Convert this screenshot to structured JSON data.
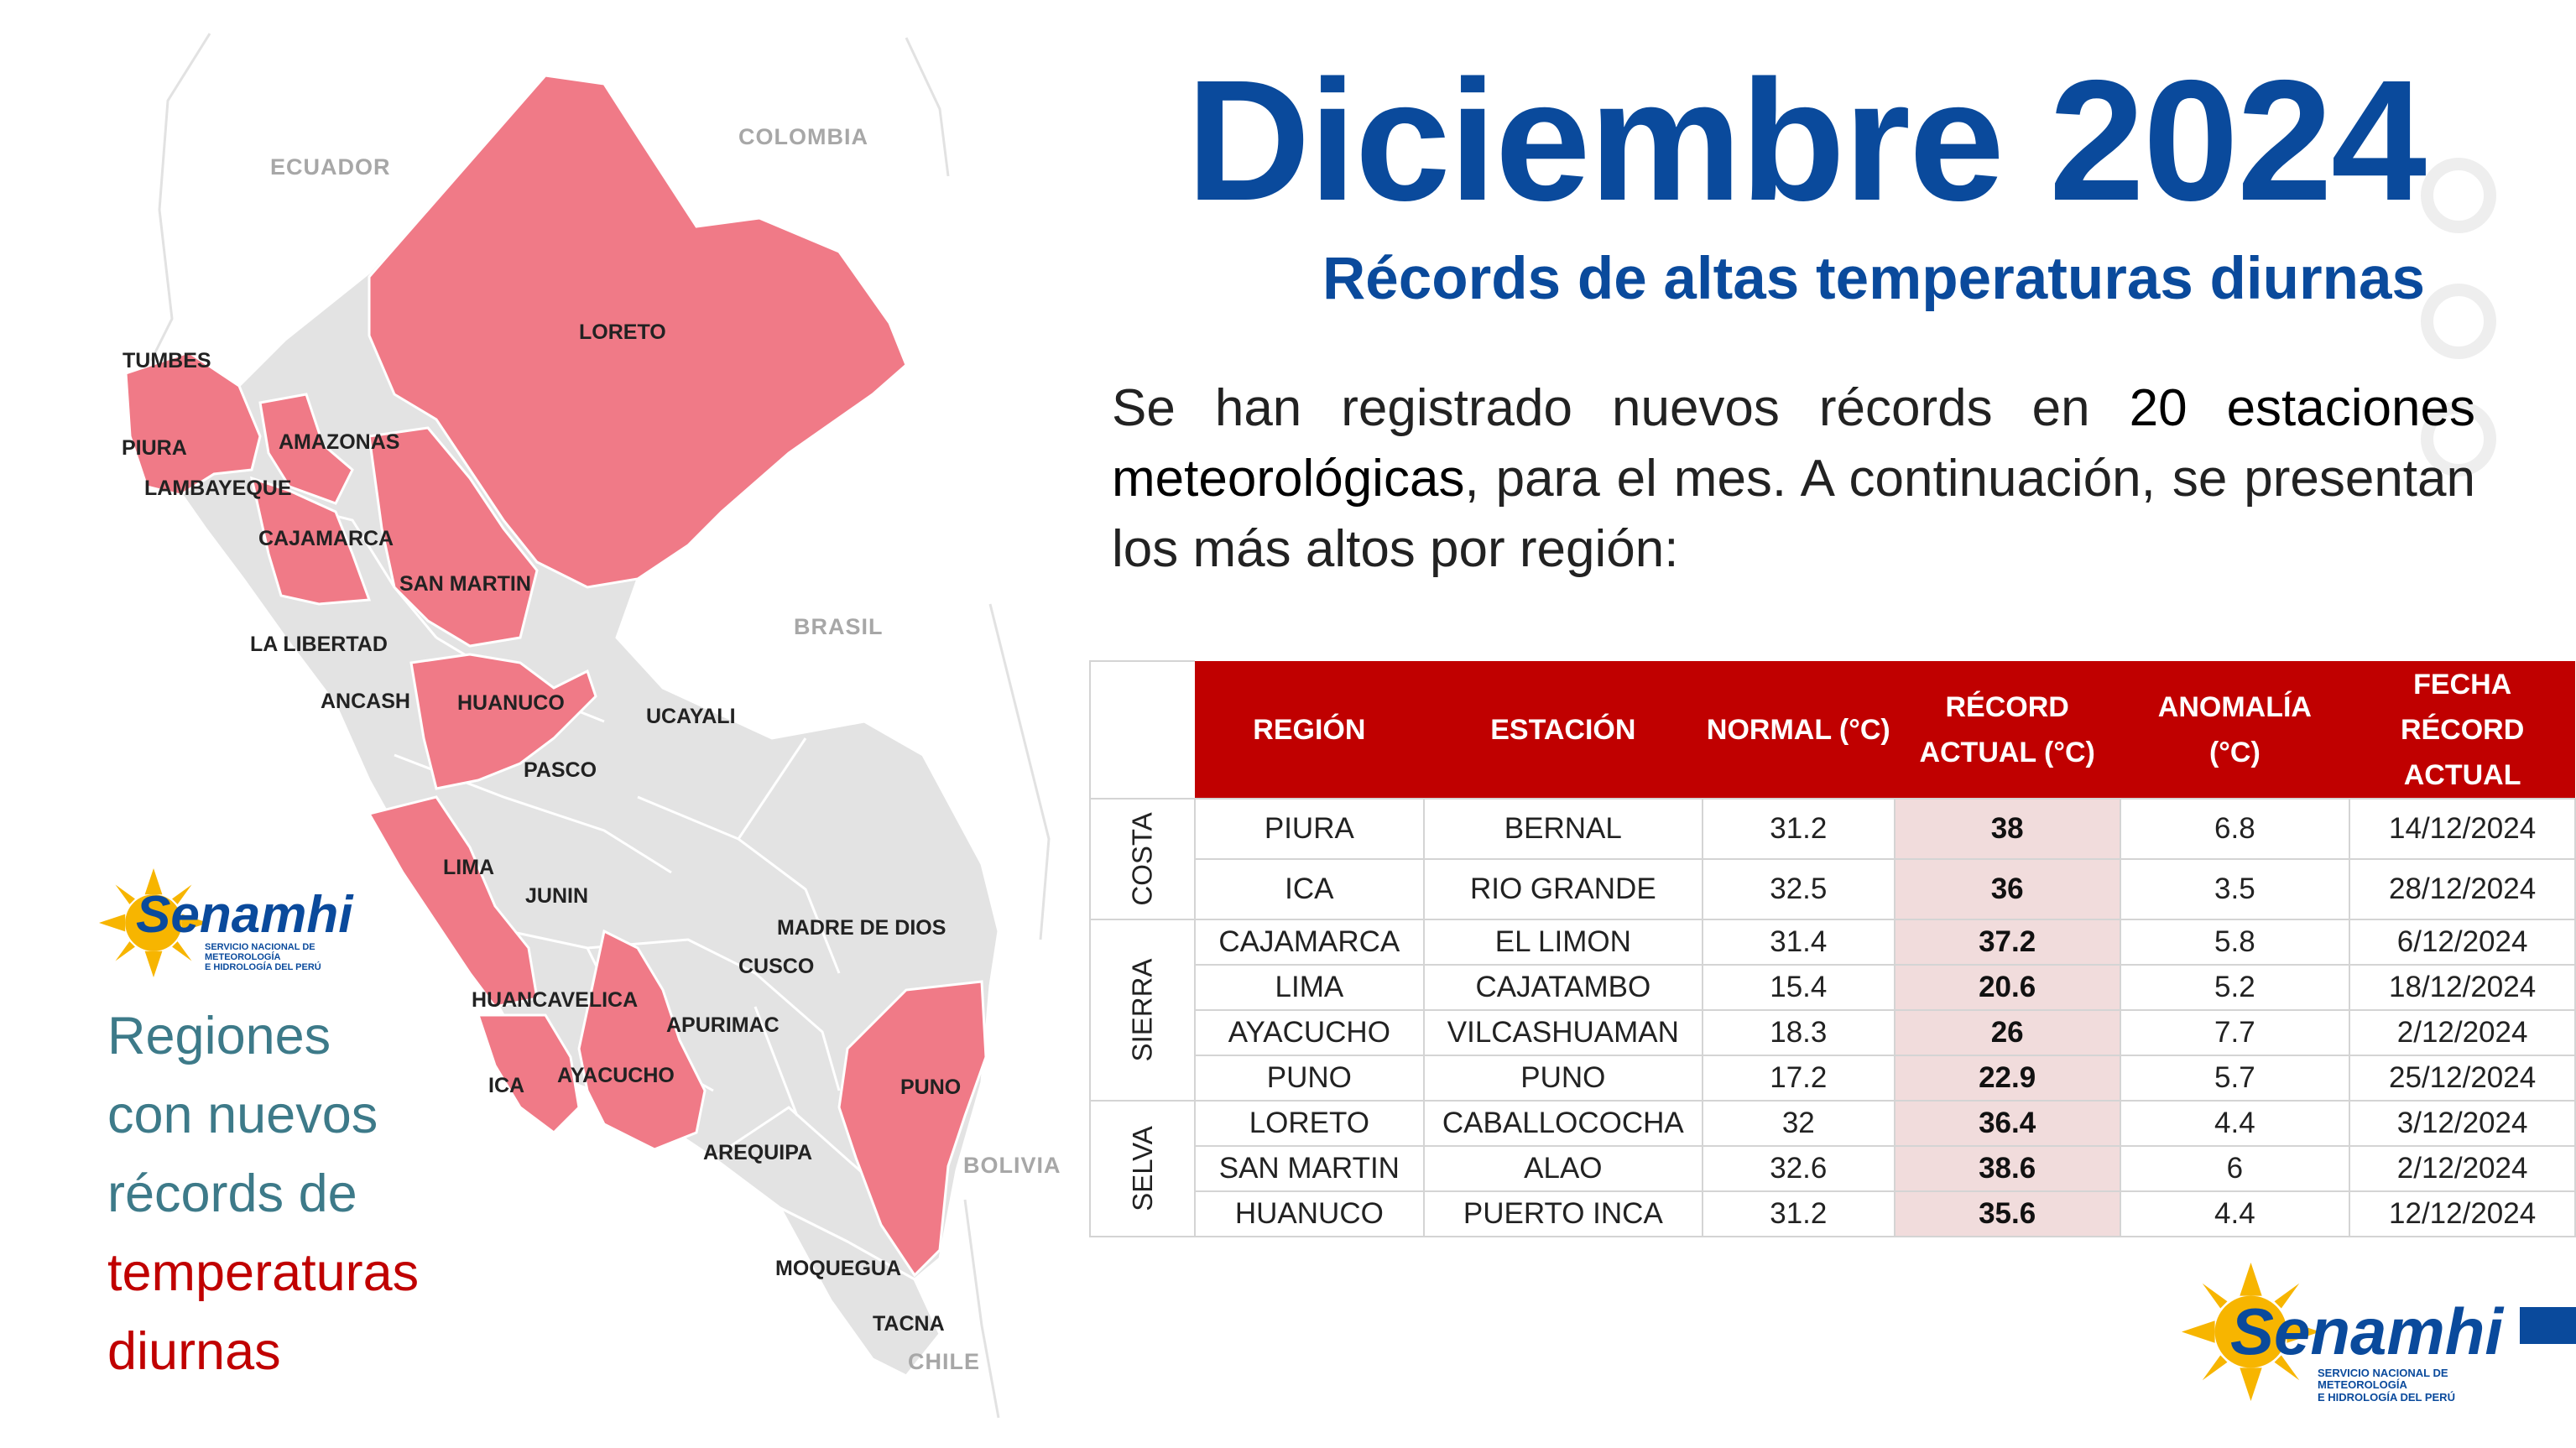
{
  "header": {
    "title": "Diciembre 2024",
    "subtitle": "Récords de altas temperaturas diurnas"
  },
  "intro": {
    "part1": "Se han registrado nuevos récords en ",
    "highlight": "20 estaciones meteorológicas",
    "part2": ", para el mes. A continuación, se presentan los más altos por región:"
  },
  "table": {
    "headers": [
      "REGIÓN",
      "ESTACIÓN",
      "NORMAL (°C)",
      "RÉCORD ACTUAL (°C)",
      "ANOMALÍA (°C)",
      "FECHA RÉCORD ACTUAL"
    ],
    "groups": [
      {
        "name": "COSTA",
        "rows": [
          [
            "PIURA",
            "BERNAL",
            "31.2",
            "38",
            "6.8",
            "14/12/2024"
          ],
          [
            "ICA",
            "RIO GRANDE",
            "32.5",
            "36",
            "3.5",
            "28/12/2024"
          ]
        ]
      },
      {
        "name": "SIERRA",
        "rows": [
          [
            "CAJAMARCA",
            "EL LIMON",
            "31.4",
            "37.2",
            "5.8",
            "6/12/2024"
          ],
          [
            "LIMA",
            "CAJATAMBO",
            "15.4",
            "20.6",
            "5.2",
            "18/12/2024"
          ],
          [
            "AYACUCHO",
            "VILCASHUAMAN",
            "18.3",
            "26",
            "7.7",
            "2/12/2024"
          ],
          [
            "PUNO",
            "PUNO",
            "17.2",
            "22.9",
            "5.7",
            "25/12/2024"
          ]
        ]
      },
      {
        "name": "SELVA",
        "rows": [
          [
            "LORETO",
            "CABALLOCOCHA",
            "32",
            "36.4",
            "4.4",
            "3/12/2024"
          ],
          [
            "SAN MARTIN",
            "ALAO",
            "32.6",
            "38.6",
            "6",
            "2/12/2024"
          ],
          [
            "HUANUCO",
            "PUERTO INCA",
            "31.2",
            "35.6",
            "4.4",
            "12/12/2024"
          ]
        ]
      }
    ]
  },
  "legend": {
    "line1": "Regiones",
    "line2": "con nuevos",
    "line3": "récords de",
    "line4": "temperaturas",
    "line5": "diurnas"
  },
  "logo": {
    "name": "Senamhi",
    "tagline1": "SERVICIO NACIONAL DE METEOROLOGÍA",
    "tagline2": "E HIDROLOGÍA DEL PERÚ"
  },
  "map": {
    "countries": [
      "ECUADOR",
      "COLOMBIA",
      "BRASIL",
      "BOLIVIA",
      "CHILE"
    ],
    "regions_highlighted": [
      "TUMBES",
      "PIURA",
      "LAMBAYEQUE",
      "AMAZONAS",
      "CAJAMARCA",
      "LORETO",
      "SAN MARTIN",
      "HUANUCO",
      "LIMA",
      "ICA",
      "AYACUCHO",
      "PUNO"
    ],
    "regions_other": [
      "LA LIBERTAD",
      "ANCASH",
      "PASCO",
      "UCAYALI",
      "JUNIN",
      "MADRE DE DIOS",
      "CUSCO",
      "HUANCAVELICA",
      "APURIMAC",
      "AREQUIPA",
      "MOQUEGUA",
      "TACNA"
    ],
    "highlight_color": "#f07a87",
    "base_color": "#e3e3e3"
  }
}
